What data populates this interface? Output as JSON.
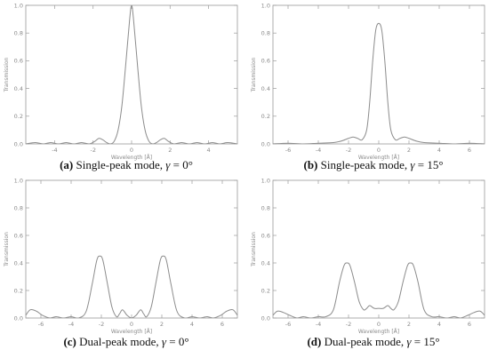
{
  "chart_data": [
    {
      "id": "a",
      "type": "line",
      "xlim": [
        -5.5,
        5.5
      ],
      "ylim": [
        0,
        1.0
      ],
      "xticks": [
        -4,
        -2,
        0,
        2,
        4
      ],
      "yticks": [
        0.0,
        0.2,
        0.4,
        0.6,
        0.8,
        1.0
      ],
      "xlabel": "Wavelength [Å]",
      "ylabel": "Transmission",
      "caption": {
        "letter": "(a)",
        "text": " Single-peak mode, ",
        "sym": "γ",
        "eq": " = 0°"
      },
      "series": [
        {
          "x": [
            -5.5,
            -5.0,
            -4.6,
            -4.2,
            -3.8,
            -3.4,
            -3.0,
            -2.6,
            -2.2,
            -1.9,
            -1.7,
            -1.5,
            -1.3,
            -1.1,
            -0.9,
            -0.7,
            -0.5,
            -0.3,
            -0.1,
            0.0,
            0.1,
            0.3,
            0.5,
            0.7,
            0.9,
            1.1,
            1.3,
            1.5,
            1.7,
            1.9,
            2.2,
            2.6,
            3.0,
            3.4,
            3.8,
            4.2,
            4.6,
            5.0,
            5.5
          ],
          "y": [
            0.0,
            0.01,
            0.0,
            0.01,
            0.0,
            0.01,
            0.0,
            0.01,
            0.0,
            0.02,
            0.04,
            0.03,
            0.01,
            0.0,
            0.02,
            0.1,
            0.28,
            0.58,
            0.9,
            1.0,
            0.9,
            0.58,
            0.28,
            0.1,
            0.02,
            0.0,
            0.01,
            0.03,
            0.04,
            0.02,
            0.0,
            0.01,
            0.0,
            0.01,
            0.0,
            0.01,
            0.0,
            0.01,
            0.0
          ]
        }
      ]
    },
    {
      "id": "b",
      "type": "line",
      "xlim": [
        -7,
        7
      ],
      "ylim": [
        0,
        1.0
      ],
      "xticks": [
        -6,
        -4,
        -2,
        0,
        2,
        4,
        6
      ],
      "yticks": [
        0.0,
        0.2,
        0.4,
        0.6,
        0.8,
        1.0
      ],
      "xlabel": "Wavelength [Å]",
      "ylabel": "Transmission",
      "caption": {
        "letter": "(b)",
        "text": " Single-peak mode, ",
        "sym": "γ",
        "eq": " = 15°"
      },
      "series": [
        {
          "x": [
            -7.0,
            -6.0,
            -5.0,
            -4.0,
            -3.0,
            -2.5,
            -2.0,
            -1.7,
            -1.4,
            -1.1,
            -0.8,
            -0.6,
            -0.4,
            -0.2,
            0.0,
            0.2,
            0.4,
            0.6,
            0.8,
            1.1,
            1.4,
            1.7,
            2.0,
            2.5,
            3.0,
            4.0,
            5.0,
            6.0,
            7.0
          ],
          "y": [
            0.0,
            0.005,
            0.0,
            0.005,
            0.01,
            0.02,
            0.04,
            0.05,
            0.04,
            0.03,
            0.1,
            0.3,
            0.6,
            0.82,
            0.87,
            0.82,
            0.6,
            0.3,
            0.1,
            0.03,
            0.04,
            0.05,
            0.04,
            0.02,
            0.01,
            0.005,
            0.0,
            0.005,
            0.0
          ]
        }
      ]
    },
    {
      "id": "c",
      "type": "line",
      "xlim": [
        -7,
        7
      ],
      "ylim": [
        0,
        1.0
      ],
      "xticks": [
        -6,
        -4,
        -2,
        0,
        2,
        4,
        6
      ],
      "yticks": [
        0.0,
        0.2,
        0.4,
        0.6,
        0.8,
        1.0
      ],
      "xlabel": "Wavelength [Å]",
      "ylabel": "Transmission",
      "caption": {
        "letter": "(c)",
        "text": " Dual-peak mode, ",
        "sym": "γ",
        "eq": " = 0°"
      },
      "series": [
        {
          "x": [
            -7.0,
            -6.7,
            -6.3,
            -5.9,
            -5.4,
            -5.0,
            -4.5,
            -4.0,
            -3.5,
            -3.0,
            -2.6,
            -2.3,
            -2.1,
            -1.9,
            -1.6,
            -1.3,
            -1.0,
            -0.8,
            -0.6,
            -0.3,
            0.0,
            0.3,
            0.6,
            0.8,
            1.0,
            1.3,
            1.6,
            1.9,
            2.1,
            2.3,
            2.6,
            3.0,
            3.5,
            4.0,
            4.5,
            5.0,
            5.4,
            5.9,
            6.3,
            6.7,
            7.0
          ],
          "y": [
            0.02,
            0.06,
            0.05,
            0.02,
            0.0,
            0.01,
            0.0,
            0.01,
            0.0,
            0.05,
            0.25,
            0.42,
            0.45,
            0.42,
            0.25,
            0.08,
            0.01,
            0.03,
            0.06,
            0.02,
            0.0,
            0.02,
            0.06,
            0.03,
            0.01,
            0.08,
            0.25,
            0.42,
            0.45,
            0.42,
            0.25,
            0.05,
            0.0,
            0.01,
            0.0,
            0.01,
            0.0,
            0.02,
            0.05,
            0.06,
            0.02
          ]
        }
      ]
    },
    {
      "id": "d",
      "type": "line",
      "xlim": [
        -7,
        7
      ],
      "ylim": [
        0,
        1.0
      ],
      "xticks": [
        -6,
        -4,
        -2,
        0,
        2,
        4,
        6
      ],
      "yticks": [
        0.0,
        0.2,
        0.4,
        0.6,
        0.8,
        1.0
      ],
      "xlabel": "Wavelength [Å]",
      "ylabel": "Transmission",
      "caption": {
        "letter": "(d)",
        "text": " Dual-peak mode, ",
        "sym": "γ",
        "eq": " = 15°"
      },
      "series": [
        {
          "x": [
            -7.0,
            -6.7,
            -6.3,
            -5.9,
            -5.4,
            -5.0,
            -4.5,
            -4.0,
            -3.5,
            -3.0,
            -2.6,
            -2.3,
            -2.1,
            -1.9,
            -1.6,
            -1.3,
            -1.0,
            -0.8,
            -0.6,
            -0.3,
            0.0,
            0.3,
            0.6,
            0.8,
            1.0,
            1.3,
            1.6,
            1.9,
            2.1,
            2.3,
            2.6,
            3.0,
            3.5,
            4.0,
            4.5,
            5.0,
            5.4,
            5.9,
            6.3,
            6.7,
            7.0
          ],
          "y": [
            0.02,
            0.05,
            0.04,
            0.02,
            0.0,
            0.01,
            0.0,
            0.01,
            0.01,
            0.06,
            0.26,
            0.38,
            0.4,
            0.38,
            0.26,
            0.12,
            0.06,
            0.07,
            0.09,
            0.07,
            0.07,
            0.07,
            0.09,
            0.07,
            0.06,
            0.12,
            0.26,
            0.38,
            0.4,
            0.38,
            0.26,
            0.06,
            0.01,
            0.01,
            0.0,
            0.01,
            0.0,
            0.02,
            0.04,
            0.05,
            0.02
          ]
        }
      ]
    }
  ]
}
